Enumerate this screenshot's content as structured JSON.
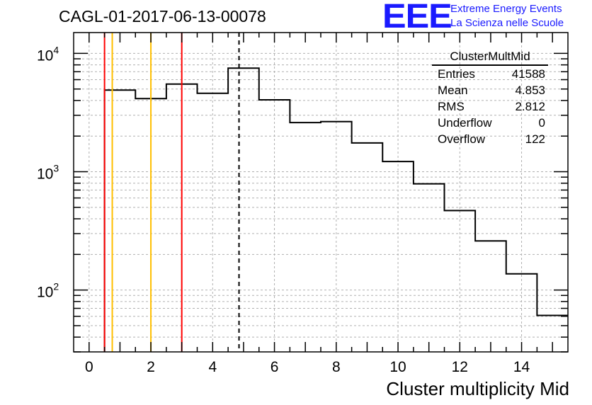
{
  "header": {
    "run_title": "CAGL-01-2017-06-13-00078",
    "logo": "EEE",
    "logo_line1": "Extreme Energy Events",
    "logo_line2": "La Scienza nelle Scuole"
  },
  "stats_box": {
    "name": "ClusterMultMid",
    "rows": [
      {
        "label": "Entries",
        "value": "41588"
      },
      {
        "label": "Mean",
        "value": "4.853"
      },
      {
        "label": "RMS",
        "value": "2.812"
      },
      {
        "label": "Underflow",
        "value": "0"
      },
      {
        "label": "Overflow",
        "value": "122"
      }
    ]
  },
  "chart_data": {
    "type": "histogram",
    "title": "CAGL-01-2017-06-13-00078",
    "xlabel": "Cluster multiplicity Mid",
    "ylabel": "",
    "x_scale": "linear",
    "y_scale": "log",
    "xlim": [
      -0.5,
      15.5
    ],
    "ylim": [
      30,
      15000
    ],
    "grid": true,
    "x_ticks": [
      0,
      2,
      4,
      6,
      8,
      10,
      12,
      14
    ],
    "y_tick_labels": [
      "10^2",
      "10^3",
      "10^4"
    ],
    "bins": [
      {
        "x_low": 0.5,
        "x_high": 1.5,
        "value": 4900
      },
      {
        "x_low": 1.5,
        "x_high": 2.5,
        "value": 4150
      },
      {
        "x_low": 2.5,
        "x_high": 3.5,
        "value": 5500
      },
      {
        "x_low": 3.5,
        "x_high": 4.5,
        "value": 4600
      },
      {
        "x_low": 4.5,
        "x_high": 5.5,
        "value": 7500
      },
      {
        "x_low": 5.5,
        "x_high": 6.5,
        "value": 4050
      },
      {
        "x_low": 6.5,
        "x_high": 7.5,
        "value": 2600
      },
      {
        "x_low": 7.5,
        "x_high": 8.5,
        "value": 2650
      },
      {
        "x_low": 8.5,
        "x_high": 9.5,
        "value": 1750
      },
      {
        "x_low": 9.5,
        "x_high": 10.5,
        "value": 1220
      },
      {
        "x_low": 10.5,
        "x_high": 11.5,
        "value": 790
      },
      {
        "x_low": 11.5,
        "x_high": 12.5,
        "value": 470
      },
      {
        "x_low": 12.5,
        "x_high": 13.5,
        "value": 260
      },
      {
        "x_low": 13.5,
        "x_high": 14.5,
        "value": 137
      },
      {
        "x_low": 14.5,
        "x_high": 15.5,
        "value": 61
      }
    ],
    "vertical_lines": [
      {
        "x": 0.5,
        "color": "#ff0000",
        "style": "solid"
      },
      {
        "x": 0.75,
        "color": "#ffbf00",
        "style": "solid"
      },
      {
        "x": 2.0,
        "color": "#ffbf00",
        "style": "solid"
      },
      {
        "x": 3.0,
        "color": "#ff0000",
        "style": "solid"
      },
      {
        "x": 4.853,
        "color": "#000000",
        "style": "dashed"
      }
    ]
  }
}
